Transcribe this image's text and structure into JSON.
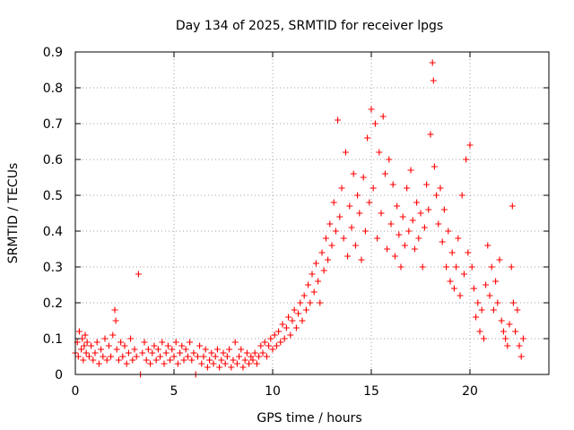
{
  "chart_data": {
    "type": "scatter",
    "title": "Day 134 of 2025, SRMTID for receiver lpgs",
    "xlabel": "GPS time / hours",
    "ylabel": "SRMTID / TECUs",
    "xlim": [
      0,
      24
    ],
    "ylim": [
      0,
      0.9
    ],
    "x_ticks": [
      0,
      5,
      10,
      15,
      20
    ],
    "x_tick_labels": [
      "0",
      "5",
      "10",
      "15",
      "20"
    ],
    "y_ticks": [
      0,
      0.1,
      0.2,
      0.3,
      0.4,
      0.5,
      0.6,
      0.7,
      0.8,
      0.9
    ],
    "y_tick_labels": [
      "0",
      "0.1",
      "0.2",
      "0.3",
      "0.4",
      "0.5",
      "0.6",
      "0.7",
      "0.8",
      "0.9"
    ],
    "grid": true,
    "marker": "+",
    "colors": {
      "series": "#ff0000",
      "grid": "#a0a0a0",
      "axes": "#000000"
    },
    "series": [
      {
        "name": "SRMTID",
        "points": [
          [
            0.0,
            0.06
          ],
          [
            0.1,
            0.09
          ],
          [
            0.15,
            0.05
          ],
          [
            0.2,
            0.12
          ],
          [
            0.3,
            0.07
          ],
          [
            0.35,
            0.1
          ],
          [
            0.4,
            0.04
          ],
          [
            0.45,
            0.08
          ],
          [
            0.5,
            0.11
          ],
          [
            0.55,
            0.06
          ],
          [
            0.6,
            0.09
          ],
          [
            0.7,
            0.05
          ],
          [
            0.8,
            0.08
          ],
          [
            0.9,
            0.04
          ],
          [
            1.0,
            0.06
          ],
          [
            1.1,
            0.09
          ],
          [
            1.2,
            0.03
          ],
          [
            1.3,
            0.07
          ],
          [
            1.4,
            0.05
          ],
          [
            1.5,
            0.1
          ],
          [
            1.6,
            0.04
          ],
          [
            1.7,
            0.08
          ],
          [
            1.8,
            0.05
          ],
          [
            1.9,
            0.11
          ],
          [
            2.0,
            0.18
          ],
          [
            2.05,
            0.15
          ],
          [
            2.1,
            0.07
          ],
          [
            2.2,
            0.04
          ],
          [
            2.3,
            0.09
          ],
          [
            2.4,
            0.05
          ],
          [
            2.5,
            0.08
          ],
          [
            2.6,
            0.03
          ],
          [
            2.7,
            0.06
          ],
          [
            2.8,
            0.1
          ],
          [
            2.9,
            0.04
          ],
          [
            3.0,
            0.07
          ],
          [
            3.1,
            0.05
          ],
          [
            3.2,
            0.28
          ],
          [
            3.3,
            0.0
          ],
          [
            3.4,
            0.06
          ],
          [
            3.5,
            0.09
          ],
          [
            3.6,
            0.04
          ],
          [
            3.7,
            0.07
          ],
          [
            3.8,
            0.03
          ],
          [
            3.9,
            0.06
          ],
          [
            4.0,
            0.08
          ],
          [
            4.1,
            0.04
          ],
          [
            4.2,
            0.07
          ],
          [
            4.3,
            0.05
          ],
          [
            4.4,
            0.09
          ],
          [
            4.5,
            0.03
          ],
          [
            4.6,
            0.06
          ],
          [
            4.7,
            0.08
          ],
          [
            4.8,
            0.04
          ],
          [
            4.9,
            0.07
          ],
          [
            5.0,
            0.05
          ],
          [
            5.1,
            0.09
          ],
          [
            5.2,
            0.03
          ],
          [
            5.3,
            0.06
          ],
          [
            5.4,
            0.08
          ],
          [
            5.5,
            0.04
          ],
          [
            5.6,
            0.07
          ],
          [
            5.7,
            0.05
          ],
          [
            5.8,
            0.09
          ],
          [
            5.9,
            0.04
          ],
          [
            6.0,
            0.06
          ],
          [
            6.1,
            0.0
          ],
          [
            6.2,
            0.05
          ],
          [
            6.3,
            0.08
          ],
          [
            6.4,
            0.03
          ],
          [
            6.5,
            0.05
          ],
          [
            6.6,
            0.07
          ],
          [
            6.7,
            0.02
          ],
          [
            6.8,
            0.04
          ],
          [
            6.9,
            0.06
          ],
          [
            7.0,
            0.03
          ],
          [
            7.1,
            0.05
          ],
          [
            7.2,
            0.07
          ],
          [
            7.3,
            0.02
          ],
          [
            7.4,
            0.04
          ],
          [
            7.5,
            0.06
          ],
          [
            7.6,
            0.03
          ],
          [
            7.7,
            0.05
          ],
          [
            7.8,
            0.07
          ],
          [
            7.9,
            0.02
          ],
          [
            8.0,
            0.04
          ],
          [
            8.1,
            0.09
          ],
          [
            8.2,
            0.03
          ],
          [
            8.3,
            0.05
          ],
          [
            8.4,
            0.07
          ],
          [
            8.5,
            0.02
          ],
          [
            8.6,
            0.04
          ],
          [
            8.7,
            0.06
          ],
          [
            8.8,
            0.03
          ],
          [
            8.9,
            0.05
          ],
          [
            9.0,
            0.04
          ],
          [
            9.1,
            0.06
          ],
          [
            9.2,
            0.03
          ],
          [
            9.3,
            0.05
          ],
          [
            9.4,
            0.08
          ],
          [
            9.5,
            0.06
          ],
          [
            9.6,
            0.09
          ],
          [
            9.7,
            0.05
          ],
          [
            9.8,
            0.08
          ],
          [
            9.9,
            0.1
          ],
          [
            10.0,
            0.07
          ],
          [
            10.1,
            0.11
          ],
          [
            10.2,
            0.08
          ],
          [
            10.3,
            0.12
          ],
          [
            10.4,
            0.09
          ],
          [
            10.5,
            0.14
          ],
          [
            10.6,
            0.1
          ],
          [
            10.7,
            0.13
          ],
          [
            10.8,
            0.16
          ],
          [
            10.9,
            0.11
          ],
          [
            11.0,
            0.15
          ],
          [
            11.1,
            0.18
          ],
          [
            11.2,
            0.13
          ],
          [
            11.3,
            0.17
          ],
          [
            11.4,
            0.2
          ],
          [
            11.5,
            0.15
          ],
          [
            11.6,
            0.22
          ],
          [
            11.7,
            0.18
          ],
          [
            11.8,
            0.25
          ],
          [
            11.9,
            0.2
          ],
          [
            12.0,
            0.28
          ],
          [
            12.1,
            0.23
          ],
          [
            12.2,
            0.31
          ],
          [
            12.3,
            0.26
          ],
          [
            12.4,
            0.2
          ],
          [
            12.5,
            0.34
          ],
          [
            12.6,
            0.29
          ],
          [
            12.7,
            0.38
          ],
          [
            12.8,
            0.32
          ],
          [
            12.9,
            0.42
          ],
          [
            13.0,
            0.36
          ],
          [
            13.1,
            0.48
          ],
          [
            13.2,
            0.4
          ],
          [
            13.3,
            0.71
          ],
          [
            13.4,
            0.44
          ],
          [
            13.5,
            0.52
          ],
          [
            13.6,
            0.38
          ],
          [
            13.7,
            0.62
          ],
          [
            13.8,
            0.33
          ],
          [
            13.9,
            0.47
          ],
          [
            14.0,
            0.41
          ],
          [
            14.1,
            0.56
          ],
          [
            14.2,
            0.36
          ],
          [
            14.3,
            0.5
          ],
          [
            14.4,
            0.45
          ],
          [
            14.5,
            0.32
          ],
          [
            14.6,
            0.55
          ],
          [
            14.7,
            0.4
          ],
          [
            14.8,
            0.66
          ],
          [
            14.9,
            0.48
          ],
          [
            15.0,
            0.74
          ],
          [
            15.1,
            0.52
          ],
          [
            15.2,
            0.7
          ],
          [
            15.3,
            0.38
          ],
          [
            15.4,
            0.62
          ],
          [
            15.5,
            0.45
          ],
          [
            15.6,
            0.72
          ],
          [
            15.7,
            0.56
          ],
          [
            15.8,
            0.35
          ],
          [
            15.9,
            0.6
          ],
          [
            16.0,
            0.42
          ],
          [
            16.1,
            0.53
          ],
          [
            16.2,
            0.33
          ],
          [
            16.3,
            0.47
          ],
          [
            16.4,
            0.39
          ],
          [
            16.5,
            0.3
          ],
          [
            16.6,
            0.44
          ],
          [
            16.7,
            0.36
          ],
          [
            16.8,
            0.52
          ],
          [
            16.9,
            0.4
          ],
          [
            17.0,
            0.57
          ],
          [
            17.1,
            0.43
          ],
          [
            17.2,
            0.35
          ],
          [
            17.3,
            0.48
          ],
          [
            17.4,
            0.38
          ],
          [
            17.5,
            0.45
          ],
          [
            17.6,
            0.3
          ],
          [
            17.7,
            0.41
          ],
          [
            17.8,
            0.53
          ],
          [
            17.9,
            0.46
          ],
          [
            18.0,
            0.67
          ],
          [
            18.1,
            0.87
          ],
          [
            18.15,
            0.82
          ],
          [
            18.2,
            0.58
          ],
          [
            18.3,
            0.5
          ],
          [
            18.4,
            0.42
          ],
          [
            18.5,
            0.52
          ],
          [
            18.6,
            0.37
          ],
          [
            18.7,
            0.46
          ],
          [
            18.8,
            0.3
          ],
          [
            18.9,
            0.4
          ],
          [
            19.0,
            0.26
          ],
          [
            19.1,
            0.34
          ],
          [
            19.2,
            0.24
          ],
          [
            19.3,
            0.3
          ],
          [
            19.4,
            0.38
          ],
          [
            19.5,
            0.22
          ],
          [
            19.6,
            0.5
          ],
          [
            19.7,
            0.28
          ],
          [
            19.8,
            0.6
          ],
          [
            19.9,
            0.34
          ],
          [
            20.0,
            0.64
          ],
          [
            20.1,
            0.3
          ],
          [
            20.2,
            0.24
          ],
          [
            20.3,
            0.16
          ],
          [
            20.4,
            0.2
          ],
          [
            20.5,
            0.12
          ],
          [
            20.6,
            0.18
          ],
          [
            20.7,
            0.1
          ],
          [
            20.8,
            0.25
          ],
          [
            20.9,
            0.36
          ],
          [
            21.0,
            0.22
          ],
          [
            21.1,
            0.3
          ],
          [
            21.2,
            0.18
          ],
          [
            21.3,
            0.26
          ],
          [
            21.4,
            0.2
          ],
          [
            21.5,
            0.32
          ],
          [
            21.6,
            0.15
          ],
          [
            21.7,
            0.12
          ],
          [
            21.8,
            0.1
          ],
          [
            21.9,
            0.08
          ],
          [
            22.0,
            0.14
          ],
          [
            22.1,
            0.3
          ],
          [
            22.15,
            0.47
          ],
          [
            22.2,
            0.2
          ],
          [
            22.3,
            0.12
          ],
          [
            22.4,
            0.18
          ],
          [
            22.5,
            0.08
          ],
          [
            22.6,
            0.05
          ],
          [
            22.7,
            0.1
          ]
        ]
      }
    ]
  }
}
